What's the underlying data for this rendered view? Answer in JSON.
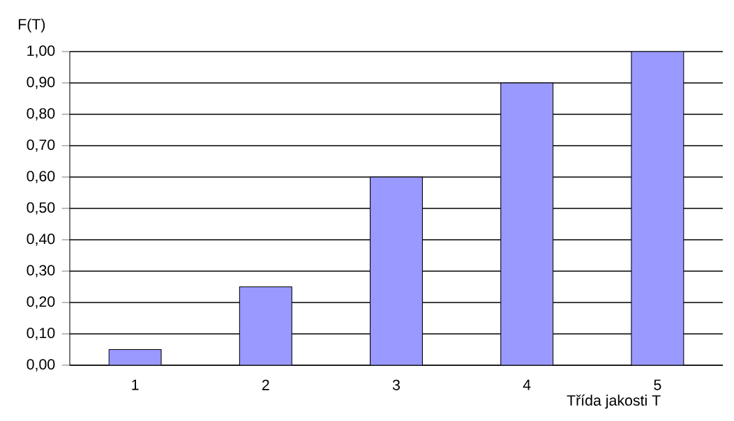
{
  "chart_data": {
    "type": "bar",
    "xlabel": "Třída  jakosti T",
    "ylabel": "F(T)",
    "categories": [
      "1",
      "2",
      "3",
      "4",
      "5"
    ],
    "values": [
      0.05,
      0.25,
      0.6,
      0.9,
      1.0
    ],
    "color": "#9999ff",
    "ylim": [
      0,
      1
    ],
    "yticks": [
      {
        "value": 0,
        "label": "0,00"
      },
      {
        "value": 0.1,
        "label": "0,10"
      },
      {
        "value": 0.2,
        "label": "0,20"
      },
      {
        "value": 0.3,
        "label": "0,30"
      },
      {
        "value": 0.4,
        "label": "0,40"
      },
      {
        "value": 0.5,
        "label": "0,50"
      },
      {
        "value": 0.6,
        "label": "0,60"
      },
      {
        "value": 0.7,
        "label": "0,70"
      },
      {
        "value": 0.8,
        "label": "0,80"
      },
      {
        "value": 0.9,
        "label": "0,90"
      },
      {
        "value": 1,
        "label": "1,00"
      }
    ],
    "grid": "y"
  }
}
